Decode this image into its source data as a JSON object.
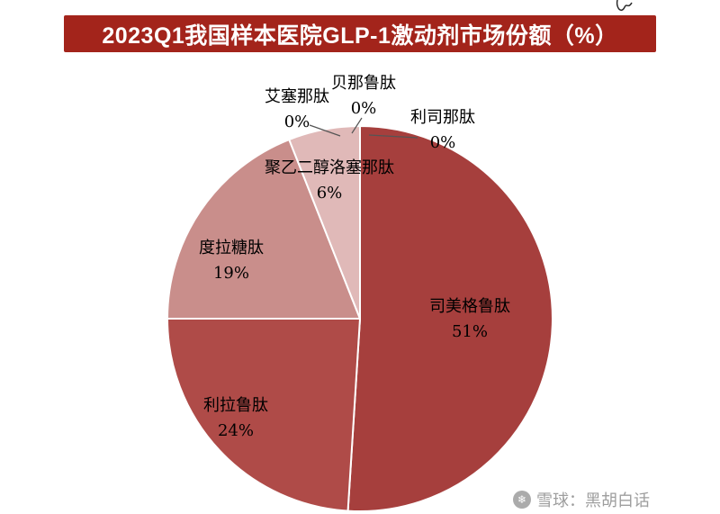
{
  "page": {
    "title": "2023Q1我国样本医院GLP-1激动剂市场份额（%）"
  },
  "watermark": {
    "source_text": "雪球：黑胡白话",
    "icon": "xueqiu-snowball-logo"
  },
  "colors": {
    "banner_red": "#A3241B",
    "slice_border": "#FFFFFF",
    "leader_line": "#555555",
    "watermark_gray": "#9E9E9E"
  },
  "chart_data": {
    "type": "pie",
    "title": "2023Q1我国样本医院GLP-1激动剂市场份额（%）",
    "unit": "%",
    "start_angle_deg": 0,
    "direction": "clockwise",
    "legend": "none",
    "segments": [
      {
        "label": "艾塞那肽",
        "value": 0,
        "pct_label": "0%",
        "color": "#E8C9C8"
      },
      {
        "label": "贝那鲁肽",
        "value": 0,
        "pct_label": "0%",
        "color": "#E8C9C8"
      },
      {
        "label": "利司那肽",
        "value": 0,
        "pct_label": "0%",
        "color": "#E8C9C8"
      },
      {
        "label": "司美格鲁肽",
        "value": 51,
        "pct_label": "51%",
        "color": "#A63F3D"
      },
      {
        "label": "利拉鲁肽",
        "value": 24,
        "pct_label": "24%",
        "color": "#AF4B48"
      },
      {
        "label": "度拉糖肽",
        "value": 19,
        "pct_label": "19%",
        "color": "#C98E8B"
      },
      {
        "label": "聚乙二醇洛塞那肽",
        "value": 6,
        "pct_label": "6%",
        "color": "#E0B9B8"
      }
    ]
  }
}
